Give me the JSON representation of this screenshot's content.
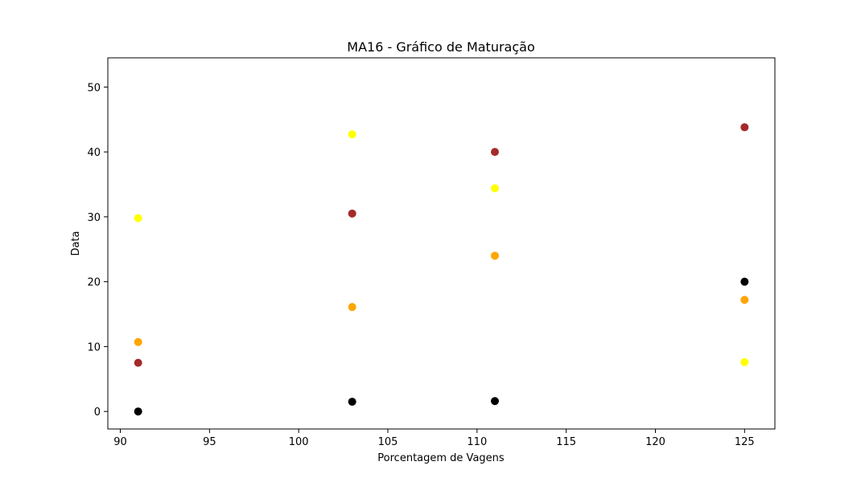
{
  "chart_data": {
    "type": "scatter",
    "title": "MA16 - Gráfico de Maturação",
    "xlabel": "Porcentagem de Vagens",
    "ylabel": "Data",
    "xlim": [
      89.3,
      126.7
    ],
    "ylim": [
      -2.7,
      54.5
    ],
    "xticks": [
      90,
      95,
      100,
      105,
      110,
      115,
      120,
      125
    ],
    "yticks": [
      0,
      10,
      20,
      30,
      40,
      50
    ],
    "grid": false,
    "series": [
      {
        "color": "#000000",
        "points": [
          [
            91,
            0
          ],
          [
            103,
            1.5
          ],
          [
            111,
            1.6
          ],
          [
            125,
            20
          ]
        ]
      },
      {
        "color": "#a52a2a",
        "points": [
          [
            91,
            7.5
          ],
          [
            103,
            30.5
          ],
          [
            111,
            40
          ],
          [
            125,
            43.8
          ]
        ]
      },
      {
        "color": "#ffa500",
        "points": [
          [
            91,
            10.7
          ],
          [
            103,
            16.1
          ],
          [
            111,
            24
          ],
          [
            125,
            17.2
          ]
        ]
      },
      {
        "color": "#ffff00",
        "points": [
          [
            91,
            29.8
          ],
          [
            103,
            42.7
          ],
          [
            111,
            34.4
          ],
          [
            125,
            7.6
          ]
        ]
      }
    ]
  }
}
